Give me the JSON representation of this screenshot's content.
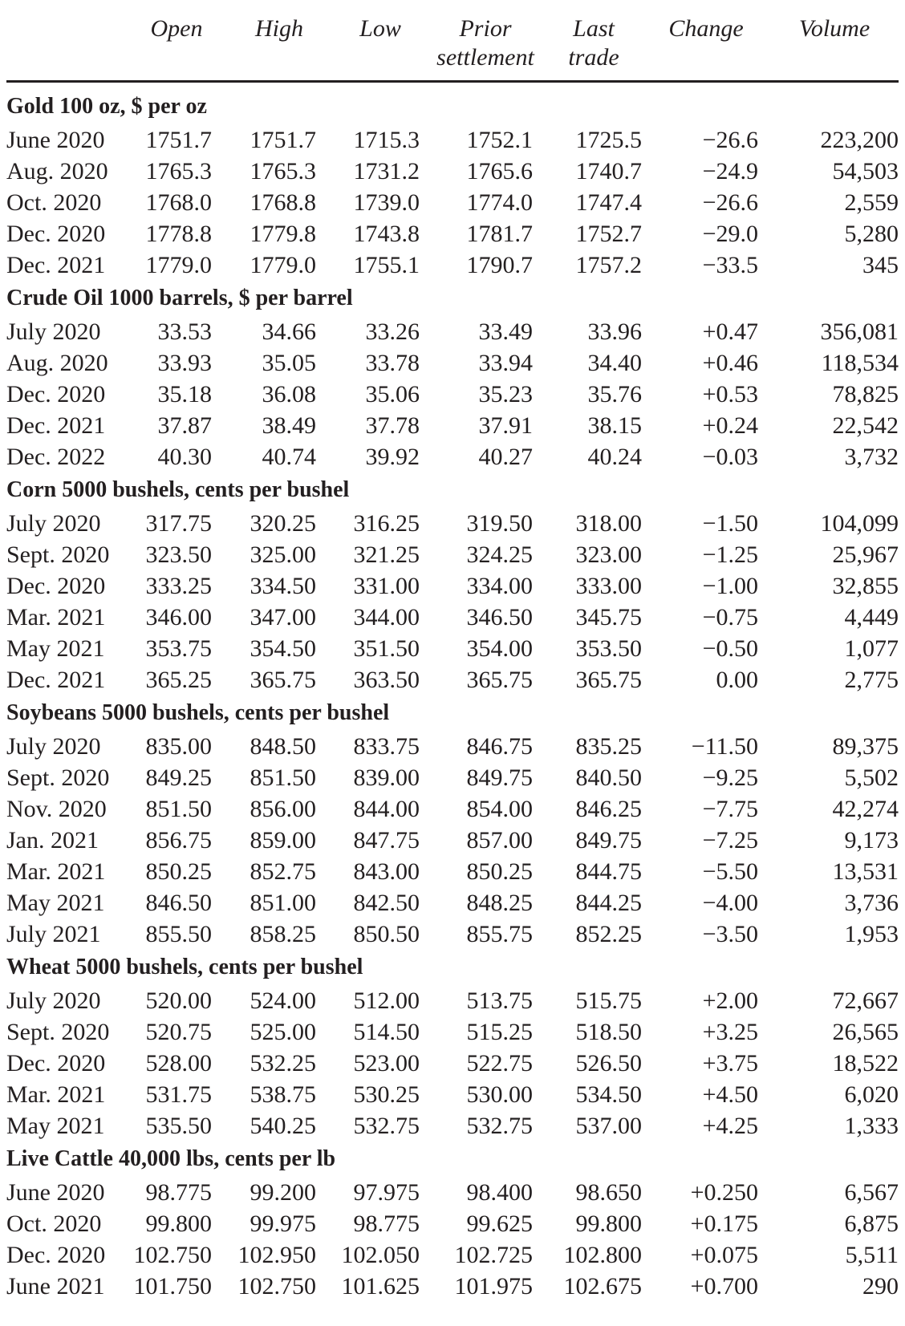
{
  "headers": {
    "open": "Open",
    "high": "High",
    "low": "Low",
    "prior_1": "Prior",
    "prior_2": "settlement",
    "last_1": "Last",
    "last_2": "trade",
    "change": "Change",
    "volume": "Volume"
  },
  "groups": [
    {
      "title": "Gold 100 oz, $ per oz",
      "rows": [
        [
          "June 2020",
          "1751.7",
          "1751.7",
          "1715.3",
          "1752.1",
          "1725.5",
          "−26.6",
          "223,200"
        ],
        [
          "Aug. 2020",
          "1765.3",
          "1765.3",
          "1731.2",
          "1765.6",
          "1740.7",
          "−24.9",
          "54,503"
        ],
        [
          "Oct. 2020",
          "1768.0",
          "1768.8",
          "1739.0",
          "1774.0",
          "1747.4",
          "−26.6",
          "2,559"
        ],
        [
          "Dec. 2020",
          "1778.8",
          "1779.8",
          "1743.8",
          "1781.7",
          "1752.7",
          "−29.0",
          "5,280"
        ],
        [
          "Dec. 2021",
          "1779.0",
          "1779.0",
          "1755.1",
          "1790.7",
          "1757.2",
          "−33.5",
          "345"
        ]
      ]
    },
    {
      "title": "Crude Oil 1000 barrels, $ per barrel",
      "rows": [
        [
          "July 2020",
          "33.53",
          "34.66",
          "33.26",
          "33.49",
          "33.96",
          "+0.47",
          "356,081"
        ],
        [
          "Aug. 2020",
          "33.93",
          "35.05",
          "33.78",
          "33.94",
          "34.40",
          "+0.46",
          "118,534"
        ],
        [
          "Dec. 2020",
          "35.18",
          "36.08",
          "35.06",
          "35.23",
          "35.76",
          "+0.53",
          "78,825"
        ],
        [
          "Dec. 2021",
          "37.87",
          "38.49",
          "37.78",
          "37.91",
          "38.15",
          "+0.24",
          "22,542"
        ],
        [
          "Dec. 2022",
          "40.30",
          "40.74",
          "39.92",
          "40.27",
          "40.24",
          "−0.03",
          "3,732"
        ]
      ]
    },
    {
      "title": "Corn 5000 bushels, cents per bushel",
      "rows": [
        [
          "July 2020",
          "317.75",
          "320.25",
          "316.25",
          "319.50",
          "318.00",
          "−1.50",
          "104,099"
        ],
        [
          "Sept. 2020",
          "323.50",
          "325.00",
          "321.25",
          "324.25",
          "323.00",
          "−1.25",
          "25,967"
        ],
        [
          "Dec. 2020",
          "333.25",
          "334.50",
          "331.00",
          "334.00",
          "333.00",
          "−1.00",
          "32,855"
        ],
        [
          "Mar. 2021",
          "346.00",
          "347.00",
          "344.00",
          "346.50",
          "345.75",
          "−0.75",
          "4,449"
        ],
        [
          "May 2021",
          "353.75",
          "354.50",
          "351.50",
          "354.00",
          "353.50",
          "−0.50",
          "1,077"
        ],
        [
          "Dec. 2021",
          "365.25",
          "365.75",
          "363.50",
          "365.75",
          "365.75",
          "0.00",
          "2,775"
        ]
      ]
    },
    {
      "title": "Soybeans 5000 bushels, cents per bushel",
      "rows": [
        [
          "July 2020",
          "835.00",
          "848.50",
          "833.75",
          "846.75",
          "835.25",
          "−11.50",
          "89,375"
        ],
        [
          "Sept. 2020",
          "849.25",
          "851.50",
          "839.00",
          "849.75",
          "840.50",
          "−9.25",
          "5,502"
        ],
        [
          "Nov. 2020",
          "851.50",
          "856.00",
          "844.00",
          "854.00",
          "846.25",
          "−7.75",
          "42,274"
        ],
        [
          "Jan. 2021",
          "856.75",
          "859.00",
          "847.75",
          "857.00",
          "849.75",
          "−7.25",
          "9,173"
        ],
        [
          "Mar. 2021",
          "850.25",
          "852.75",
          "843.00",
          "850.25",
          "844.75",
          "−5.50",
          "13,531"
        ],
        [
          "May 2021",
          "846.50",
          "851.00",
          "842.50",
          "848.25",
          "844.25",
          "−4.00",
          "3,736"
        ],
        [
          "July 2021",
          "855.50",
          "858.25",
          "850.50",
          "855.75",
          "852.25",
          "−3.50",
          "1,953"
        ]
      ]
    },
    {
      "title": "Wheat 5000 bushels, cents per bushel",
      "rows": [
        [
          "July 2020",
          "520.00",
          "524.00",
          "512.00",
          "513.75",
          "515.75",
          "+2.00",
          "72,667"
        ],
        [
          "Sept. 2020",
          "520.75",
          "525.00",
          "514.50",
          "515.25",
          "518.50",
          "+3.25",
          "26,565"
        ],
        [
          "Dec. 2020",
          "528.00",
          "532.25",
          "523.00",
          "522.75",
          "526.50",
          "+3.75",
          "18,522"
        ],
        [
          "Mar. 2021",
          "531.75",
          "538.75",
          "530.25",
          "530.00",
          "534.50",
          "+4.50",
          "6,020"
        ],
        [
          "May 2021",
          "535.50",
          "540.25",
          "532.75",
          "532.75",
          "537.00",
          "+4.25",
          "1,333"
        ]
      ]
    },
    {
      "title": "Live Cattle 40,000 lbs, cents per lb",
      "rows": [
        [
          "June 2020",
          "98.775",
          "99.200",
          "97.975",
          "98.400",
          "98.650",
          "+0.250",
          "6,567"
        ],
        [
          "Oct. 2020",
          "99.800",
          "99.975",
          "98.775",
          "99.625",
          "99.800",
          "+0.175",
          "6,875"
        ],
        [
          "Dec. 2020",
          "102.750",
          "102.950",
          "102.050",
          "102.725",
          "102.800",
          "+0.075",
          "5,511"
        ],
        [
          "June 2021",
          "101.750",
          "102.750",
          "101.625",
          "101.975",
          "102.675",
          "+0.700",
          "290"
        ]
      ]
    }
  ]
}
